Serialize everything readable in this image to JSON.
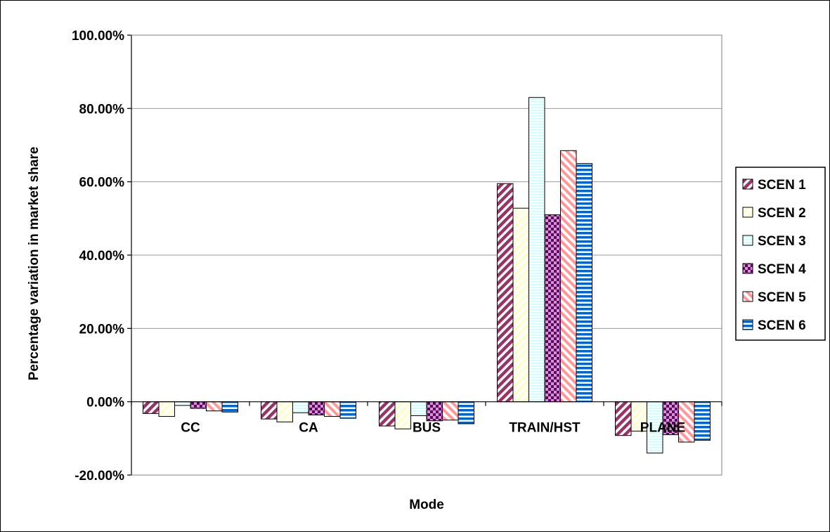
{
  "chart_data": {
    "type": "bar",
    "title": "",
    "xlabel": "Mode",
    "ylabel": "Percentage variation in market share",
    "ylim": [
      -20,
      100
    ],
    "yticks": [
      100,
      80,
      60,
      40,
      20,
      0,
      -20
    ],
    "ytick_labels": [
      "100.00%",
      "80.00%",
      "60.00%",
      "40.00%",
      "20.00%",
      "0.00%",
      "-20.00%"
    ],
    "grid": "horizontal",
    "legend_position": "right",
    "categories": [
      "CC",
      "CA",
      "BUS",
      "TRAIN/HST",
      "PLANE"
    ],
    "series": [
      {
        "name": "SCEN 1",
        "values": [
          -3.2,
          -4.7,
          -6.6,
          59.5,
          -9.2
        ],
        "color": "#993366",
        "pattern": "diag-stripes"
      },
      {
        "name": "SCEN 2",
        "values": [
          -4.0,
          -5.5,
          -7.4,
          52.8,
          -8.0
        ],
        "color": "#FFFFCC",
        "pattern": "diag-stripes-light"
      },
      {
        "name": "SCEN 3",
        "values": [
          -1.0,
          -3.0,
          -3.8,
          83.0,
          -14.0
        ],
        "color": "#CCFFFF",
        "pattern": "horiz-stripes-light"
      },
      {
        "name": "SCEN 4",
        "values": [
          -1.8,
          -3.6,
          -5.2,
          51.0,
          -9.0
        ],
        "color": "#660066",
        "pattern": "checker"
      },
      {
        "name": "SCEN 5",
        "values": [
          -2.5,
          -4.0,
          -5.0,
          68.5,
          -11.0
        ],
        "color": "#FF8080",
        "pattern": "diag-stripes-pink"
      },
      {
        "name": "SCEN 6",
        "values": [
          -2.8,
          -4.5,
          -6.0,
          65.0,
          -10.5
        ],
        "color": "#0066CC",
        "pattern": "horiz-stripes-blue"
      }
    ]
  }
}
